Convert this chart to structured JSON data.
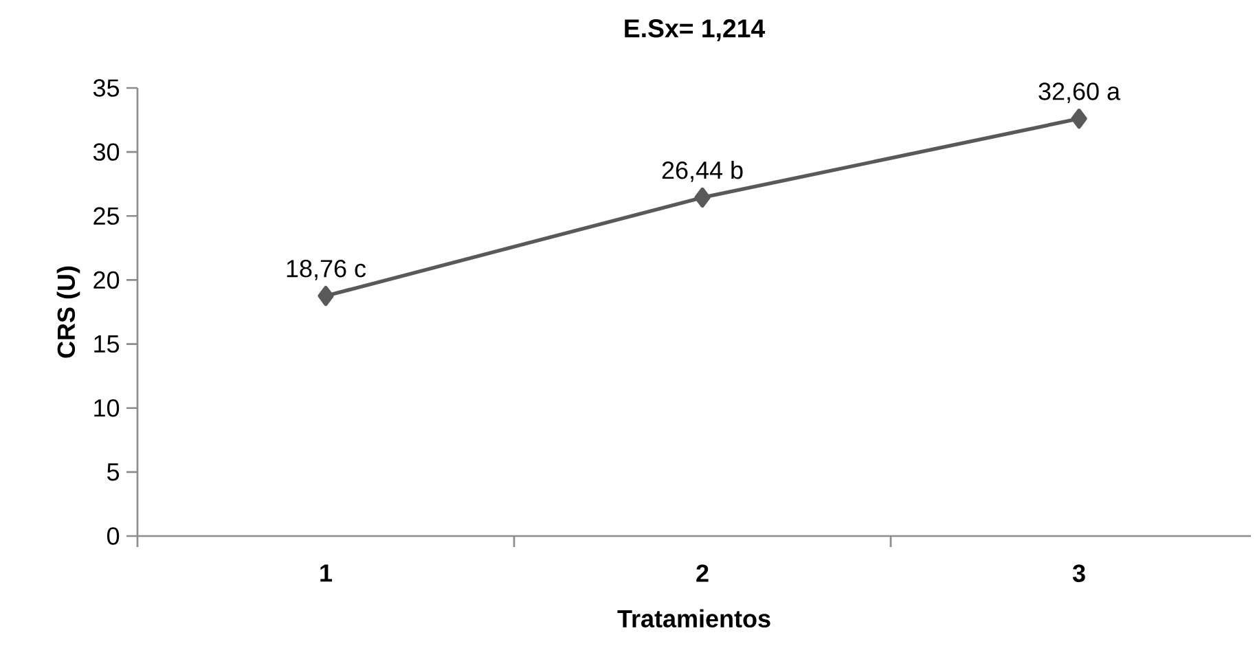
{
  "chart_data": {
    "type": "line",
    "title": "E.Sx=  1,214",
    "xlabel": "Tratamientos",
    "ylabel": "CRS (U)",
    "categories": [
      "1",
      "2",
      "3"
    ],
    "values": [
      18.76,
      26.44,
      32.6
    ],
    "value_labels": [
      "18,76 c",
      "26,44 b",
      "32,60 a"
    ],
    "color": "#595959",
    "marker": "diamond",
    "line_style": "solid",
    "ylim": [
      0,
      35
    ],
    "yticks": [
      0,
      5,
      10,
      15,
      20,
      25,
      30,
      35
    ],
    "grid": false
  }
}
